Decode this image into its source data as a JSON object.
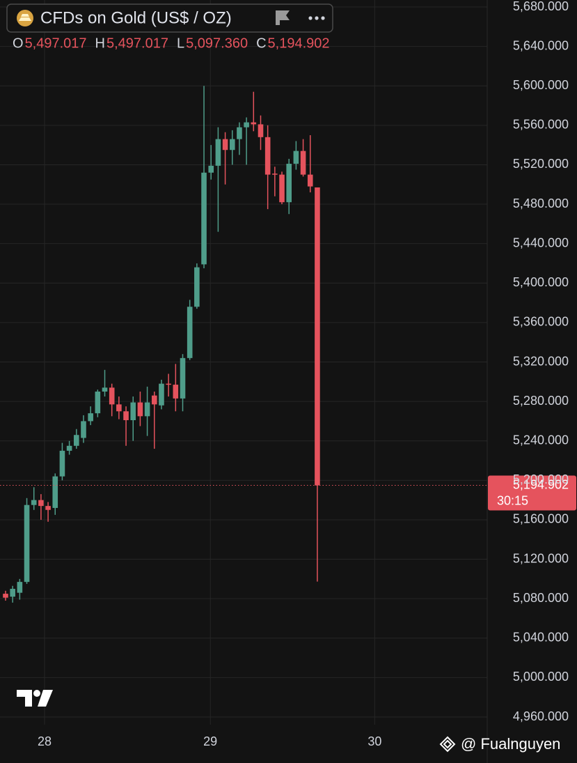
{
  "chart_data": {
    "type": "candlestick",
    "title": "CFDs on Gold (US$ / OZ)",
    "legend_values": [
      {
        "key": "O",
        "value": "5,497.017"
      },
      {
        "key": "H",
        "value": "5,497.017"
      },
      {
        "key": "L",
        "value": "5,097.360"
      },
      {
        "key": "C",
        "value": "5,194.902"
      }
    ],
    "categories": [
      null,
      null,
      null,
      null,
      null,
      null,
      null,
      null,
      null,
      null,
      null,
      null,
      null,
      null,
      null,
      null,
      null,
      null,
      null,
      null,
      null,
      null,
      null,
      null,
      null,
      null,
      null,
      null,
      null,
      null,
      null,
      null,
      null,
      null,
      null,
      null,
      null,
      null,
      null,
      null,
      null,
      null,
      null,
      null,
      null
    ],
    "open": [
      5085,
      5082,
      5086,
      5097,
      5175,
      5180,
      5174,
      5172,
      5204,
      5230,
      5235,
      5243,
      5260,
      5268,
      5290,
      5294,
      5277,
      5270,
      5261,
      5279,
      5265,
      5286,
      5276,
      5298,
      5297,
      5283,
      5324,
      5376,
      5419,
      5512,
      5519,
      5546,
      5535,
      5546,
      5558,
      5563,
      5561,
      5548,
      5511,
      5510,
      5482,
      5521,
      5534,
      5510,
      5497.017
    ],
    "high": [
      5088,
      5093,
      5100,
      5182,
      5193,
      5186,
      5178,
      5207,
      5238,
      5240,
      5252,
      5266,
      5275,
      5292,
      5312,
      5298,
      5285,
      5275,
      5285,
      5290,
      5295,
      5290,
      5302,
      5308,
      5318,
      5328,
      5383,
      5420,
      5600,
      5540,
      5558,
      5553,
      5555,
      5563,
      5568,
      5594,
      5570,
      5560,
      5518,
      5513,
      5526,
      5544,
      5546,
      5550,
      5497.017
    ],
    "low": [
      5078,
      5076,
      5079,
      5095,
      5170,
      5160,
      5158,
      5165,
      5200,
      5226,
      5232,
      5238,
      5256,
      5264,
      5285,
      5265,
      5262,
      5235,
      5240,
      5255,
      5245,
      5232,
      5272,
      5285,
      5270,
      5270,
      5322,
      5374,
      5415,
      5505,
      5452,
      5500,
      5520,
      5530,
      5520,
      5554,
      5535,
      5475,
      5488,
      5480,
      5470,
      5515,
      5508,
      5492,
      5097.36
    ],
    "close": [
      5081,
      5090,
      5097,
      5175,
      5180,
      5174,
      5170,
      5204,
      5230,
      5235,
      5246,
      5260,
      5268,
      5290,
      5294,
      5277,
      5270,
      5261,
      5279,
      5265,
      5279,
      5277,
      5298,
      5297,
      5283,
      5324,
      5376,
      5416,
      5512,
      5519,
      5546,
      5535,
      5546,
      5558,
      5563,
      5561,
      5548,
      5510,
      5510,
      5482,
      5521,
      5534,
      5510,
      5498,
      5194.902
    ],
    "up_color": "#4f9d8a",
    "down_color": "#e5535d",
    "ylim": [
      4960,
      5680
    ],
    "yticks": [
      {
        "value": 4960,
        "label": "4,960.000"
      },
      {
        "value": 5000,
        "label": "5,000.000"
      },
      {
        "value": 5040,
        "label": "5,040.000"
      },
      {
        "value": 5080,
        "label": "5,080.000"
      },
      {
        "value": 5120,
        "label": "5,120.000"
      },
      {
        "value": 5160,
        "label": "5,160.000"
      },
      {
        "value": 5200,
        "label": "5,200.000"
      },
      {
        "value": 5240,
        "label": "5,240.000"
      },
      {
        "value": 5280,
        "label": "5,280.000"
      },
      {
        "value": 5320,
        "label": "5,320.000"
      },
      {
        "value": 5360,
        "label": "5,360.000"
      },
      {
        "value": 5400,
        "label": "5,400.000"
      },
      {
        "value": 5440,
        "label": "5,440.000"
      },
      {
        "value": 5480,
        "label": "5,480.000"
      },
      {
        "value": 5520,
        "label": "5,520.000"
      },
      {
        "value": 5560,
        "label": "5,560.000"
      },
      {
        "value": 5600,
        "label": "5,600.000"
      },
      {
        "value": 5640,
        "label": "5,640.000"
      },
      {
        "value": 5680,
        "label": "5,680.000"
      }
    ],
    "xticks": [
      {
        "value": 5.5,
        "label": "28"
      },
      {
        "value": 28.9,
        "label": "29"
      },
      {
        "value": 52.1,
        "label": "30"
      }
    ],
    "grid": true,
    "last_price": {
      "value": 5194.902,
      "label": "5,194.902"
    },
    "countdown": "30:15",
    "watermark": "@ Fualnguyen"
  }
}
